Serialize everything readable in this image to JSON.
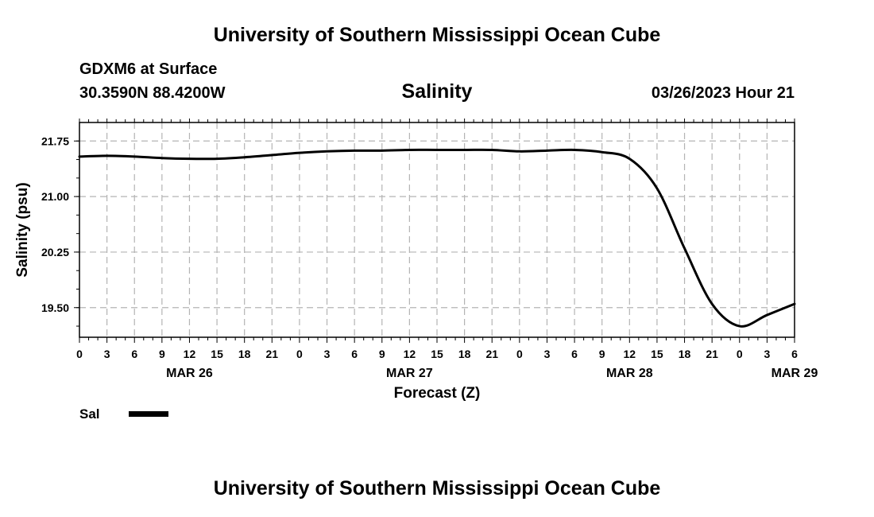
{
  "header": {
    "title_top": "University of Southern Mississippi Ocean Cube",
    "station": "GDXM6 at Surface",
    "coords": "30.3590N  88.4200W",
    "date": "03/26/2023 Hour 21"
  },
  "footer": {
    "title_bottom": "University of Southern Mississippi Ocean Cube"
  },
  "colors": {
    "line": "#000000",
    "grid": "#b4b4b4"
  },
  "chart_data": {
    "type": "line",
    "title": "Salinity",
    "xlabel": "Forecast (Z)",
    "ylabel": "Salinity (psu)",
    "xlim": [
      0,
      78
    ],
    "ylim": [
      19.1,
      22.0
    ],
    "y_ticks": [
      21.75,
      21.0,
      20.25,
      19.5
    ],
    "y_tick_labels": [
      "21.75",
      "21.00",
      "20.25",
      "19.50"
    ],
    "x_tick_labels": [
      "0",
      "3",
      "6",
      "9",
      "12",
      "15",
      "18",
      "21",
      "0",
      "3",
      "6",
      "9",
      "12",
      "15",
      "18",
      "21",
      "0",
      "3",
      "6",
      "9",
      "12",
      "15",
      "18",
      "21",
      "0",
      "3",
      "6"
    ],
    "day_labels": [
      {
        "label": "MAR 26",
        "hour": 12
      },
      {
        "label": "MAR 27",
        "hour": 36
      },
      {
        "label": "MAR 28",
        "hour": 60
      },
      {
        "label": "MAR 29",
        "hour": 78
      }
    ],
    "grid": true,
    "series": [
      {
        "name": "Sal",
        "x": [
          0,
          3,
          6,
          9,
          12,
          15,
          18,
          21,
          24,
          27,
          30,
          33,
          36,
          39,
          42,
          45,
          48,
          51,
          54,
          57,
          60,
          63,
          66,
          69,
          72,
          75,
          78
        ],
        "values": [
          21.54,
          21.55,
          21.54,
          21.52,
          21.51,
          21.51,
          21.53,
          21.56,
          21.59,
          21.61,
          21.62,
          21.62,
          21.63,
          21.63,
          21.63,
          21.63,
          21.61,
          21.62,
          21.63,
          21.6,
          21.51,
          21.11,
          20.3,
          19.55,
          19.25,
          19.4,
          19.55
        ]
      }
    ],
    "legend": {
      "label": "Sal",
      "placement": "bottom-left"
    }
  }
}
